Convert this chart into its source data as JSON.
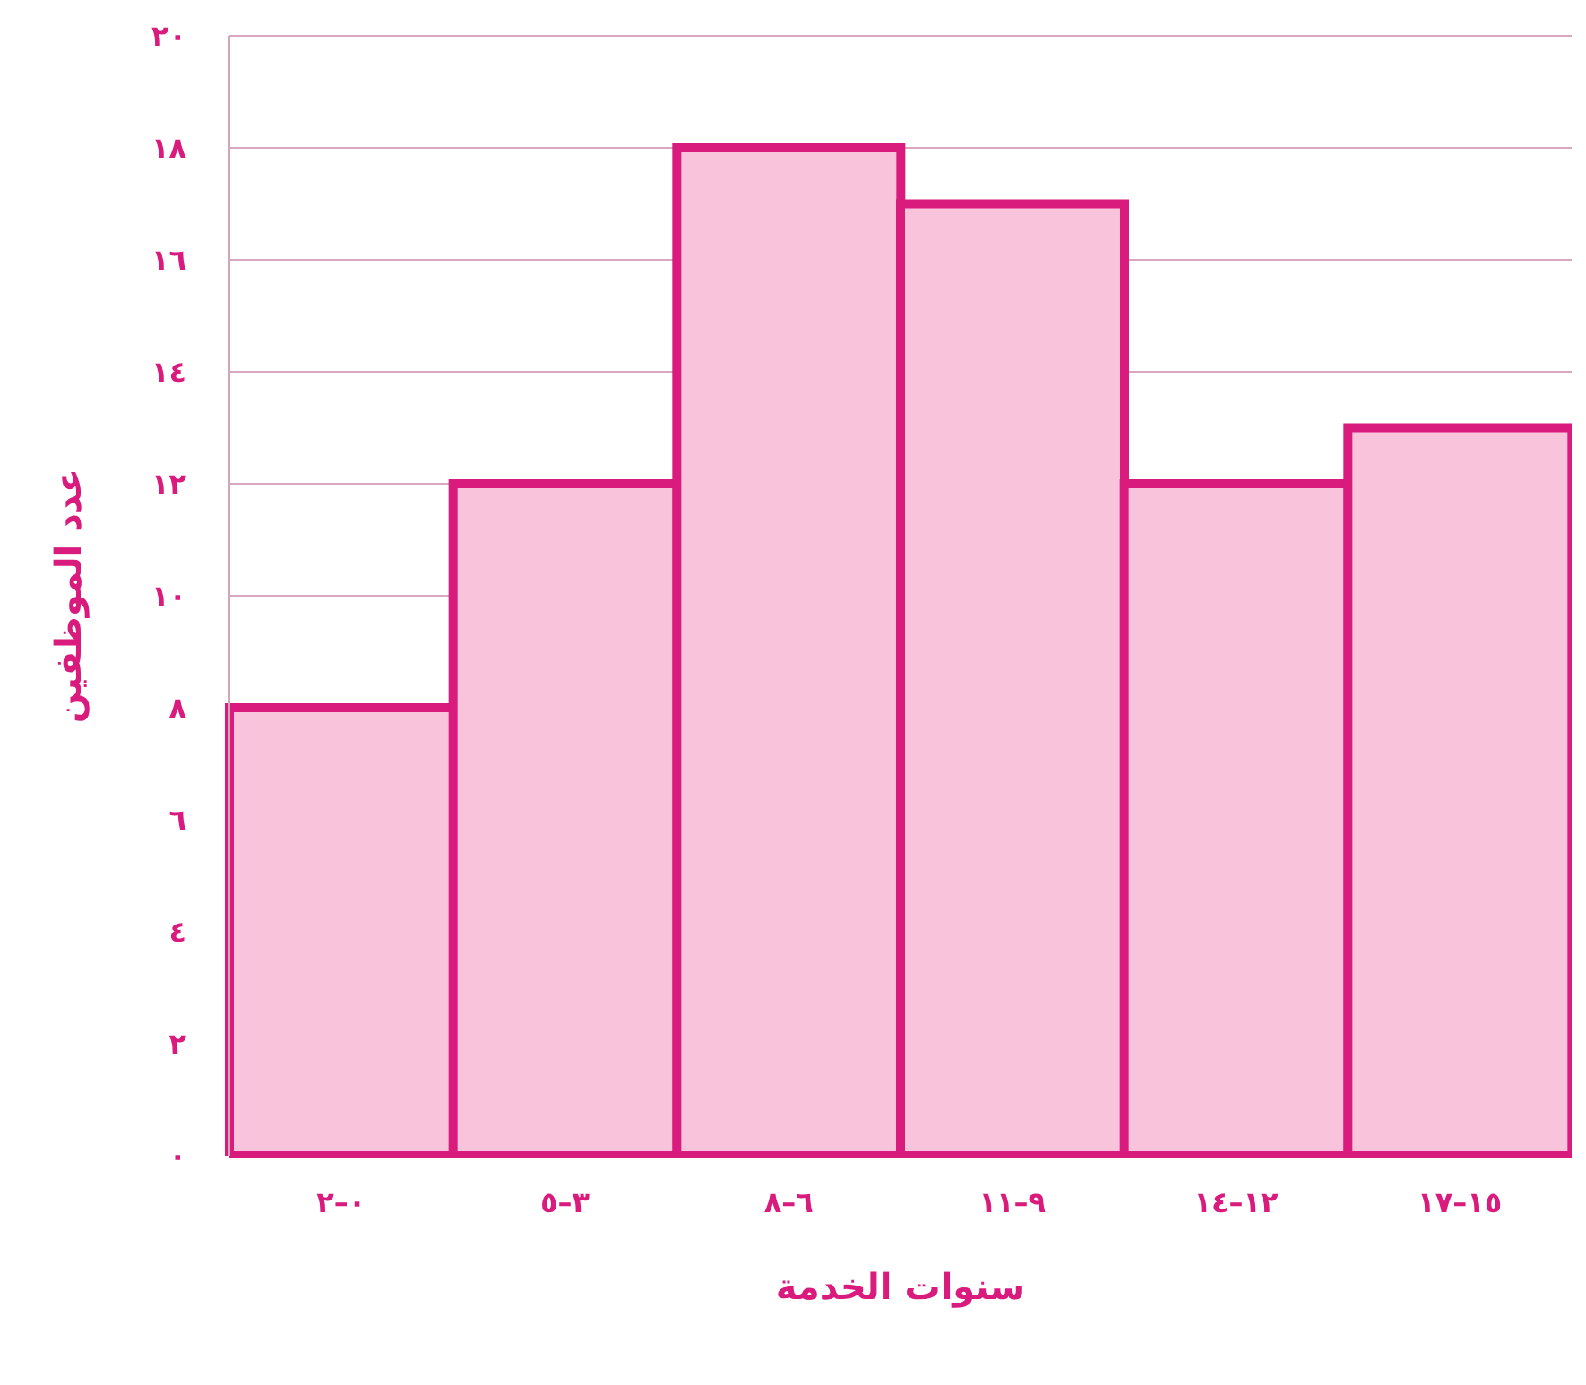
{
  "chart_data": {
    "type": "bar",
    "xlabel": "سنوات الخدمة",
    "ylabel": "عدد الموظفين",
    "categories": [
      "٠–٢",
      "٣–٥",
      "٦–٨",
      "٩–١١",
      "١٢–١٤",
      "١٥–١٧"
    ],
    "values": [
      8,
      12,
      18,
      17,
      12,
      13
    ],
    "color": "#f9c3dc",
    "ylim": [
      0,
      20
    ],
    "yticks": [
      {
        "value": 0,
        "label": "٠"
      },
      {
        "value": 2,
        "label": "٢"
      },
      {
        "value": 4,
        "label": "٤"
      },
      {
        "value": 6,
        "label": "٦"
      },
      {
        "value": 8,
        "label": "٨"
      },
      {
        "value": 10,
        "label": "١٠"
      },
      {
        "value": 12,
        "label": "١٢"
      },
      {
        "value": 14,
        "label": "١٤"
      },
      {
        "value": 16,
        "label": "١٦"
      },
      {
        "value": 18,
        "label": "١٨"
      },
      {
        "value": 20,
        "label": "٢٠"
      }
    ],
    "grid": "y"
  }
}
